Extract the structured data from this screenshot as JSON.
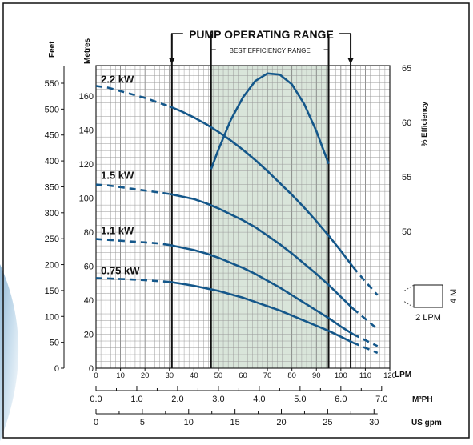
{
  "chart_data": {
    "type": "line",
    "range_labels": {
      "operating": "PUMP OPERATING RANGE",
      "efficiency": "BEST EFFICIENCY RANGE"
    },
    "operating_range_lpm": [
      31,
      104
    ],
    "best_efficiency_range_lpm": [
      47,
      95
    ],
    "x_axis": {
      "unit": "LPM",
      "ticks": [
        "0",
        "10",
        "20",
        "30",
        "40",
        "50",
        "60",
        "70",
        "80",
        "90",
        "100",
        "110",
        "120"
      ]
    },
    "m3ph_axis": {
      "unit": "M³PH",
      "ticks": [
        "0.0",
        "1.0",
        "2.0",
        "3.0",
        "4.0",
        "5.0",
        "6.0",
        "7.0"
      ]
    },
    "usgpm_axis": {
      "unit": "US gpm",
      "ticks": [
        "0",
        "5",
        "10",
        "15",
        "20",
        "25",
        "30"
      ]
    },
    "feet_axis": {
      "label": "Feet",
      "ticks": [
        "0",
        "50",
        "100",
        "150",
        "200",
        "250",
        "300",
        "350",
        "400",
        "450",
        "500",
        "550"
      ]
    },
    "metres_axis": {
      "label": "Metres",
      "ticks": [
        "0",
        "20",
        "40",
        "60",
        "80",
        "100",
        "120",
        "140",
        "160"
      ]
    },
    "efficiency_axis": {
      "label": "% Efficiency",
      "ticks": [
        "50",
        "55",
        "60",
        "65"
      ]
    },
    "xlim": [
      0,
      120
    ],
    "ylim_metres": [
      0,
      178
    ],
    "efficiency_lim": [
      30,
      65
    ],
    "series": [
      {
        "name": "2.2 kW",
        "dashed_x": [
          0,
          5,
          10,
          15,
          20,
          25,
          30
        ],
        "dashed_y": [
          166,
          165,
          163,
          161,
          159,
          156.5,
          154
        ],
        "x": [
          30,
          35,
          40,
          45,
          50,
          55,
          60,
          65,
          70,
          75,
          80,
          85,
          90,
          95,
          100,
          105
        ],
        "y": [
          154,
          151,
          147.5,
          143.5,
          139,
          134,
          128.5,
          122.5,
          116,
          109,
          102,
          94.5,
          86.5,
          78,
          69,
          59.5
        ],
        "tail_x": [
          105,
          110,
          115
        ],
        "tail_y": [
          59.5,
          51,
          43
        ]
      },
      {
        "name": "1.5 kW",
        "dashed_x": [
          0,
          5,
          10,
          15,
          20,
          25,
          30
        ],
        "dashed_y": [
          108,
          107.5,
          106.5,
          105.5,
          104.5,
          103.5,
          102.5
        ],
        "x": [
          30,
          35,
          40,
          45,
          50,
          55,
          60,
          65,
          70,
          75,
          80,
          85,
          90,
          95,
          100,
          105
        ],
        "y": [
          102.5,
          101,
          99.5,
          97,
          94,
          90.5,
          87,
          83,
          78,
          73,
          67.5,
          61.5,
          55.5,
          49,
          42,
          35
        ],
        "tail_x": [
          105,
          110,
          115
        ],
        "tail_y": [
          35,
          29,
          23
        ]
      },
      {
        "name": "1.1 kW",
        "dashed_x": [
          0,
          5,
          10,
          15,
          20,
          25,
          30
        ],
        "dashed_y": [
          76,
          75.5,
          75,
          74.5,
          74,
          73.5,
          72.5
        ],
        "x": [
          30,
          35,
          40,
          45,
          50,
          55,
          60,
          65,
          70,
          75,
          80,
          85,
          90,
          95,
          100,
          105
        ],
        "y": [
          72.5,
          71,
          69.5,
          67.5,
          65,
          62,
          59,
          55.5,
          51.5,
          47.5,
          43,
          38.5,
          34,
          29.5,
          24.5,
          20
        ],
        "tail_x": [
          105,
          110,
          115
        ],
        "tail_y": [
          20,
          16.5,
          13
        ]
      },
      {
        "name": "0.75 kW",
        "dashed_x": [
          0,
          5,
          10,
          15,
          20,
          25,
          30
        ],
        "dashed_y": [
          53,
          52.8,
          52.5,
          52.2,
          51.8,
          51.3,
          50.8
        ],
        "x": [
          30,
          35,
          40,
          45,
          50,
          55,
          60,
          65,
          70,
          75,
          80,
          85,
          90,
          95,
          100,
          105
        ],
        "y": [
          50.8,
          49.7,
          48.5,
          47,
          45.5,
          43.5,
          41.5,
          39,
          36.5,
          34,
          31,
          28,
          25,
          22,
          18.5,
          15
        ],
        "tail_x": [
          105,
          110,
          115
        ],
        "tail_y": [
          15,
          12,
          9
        ]
      }
    ],
    "efficiency_curve": {
      "x": [
        47,
        50,
        55,
        60,
        65,
        70,
        75,
        80,
        85,
        90,
        95
      ],
      "y": [
        55.7,
        57.5,
        60.2,
        62.3,
        63.8,
        64.5,
        64.4,
        63.5,
        61.7,
        59.2,
        56.2
      ]
    },
    "scale_box": {
      "height_label": "4 M",
      "flow_label": "2 LPM"
    },
    "grid": true
  }
}
